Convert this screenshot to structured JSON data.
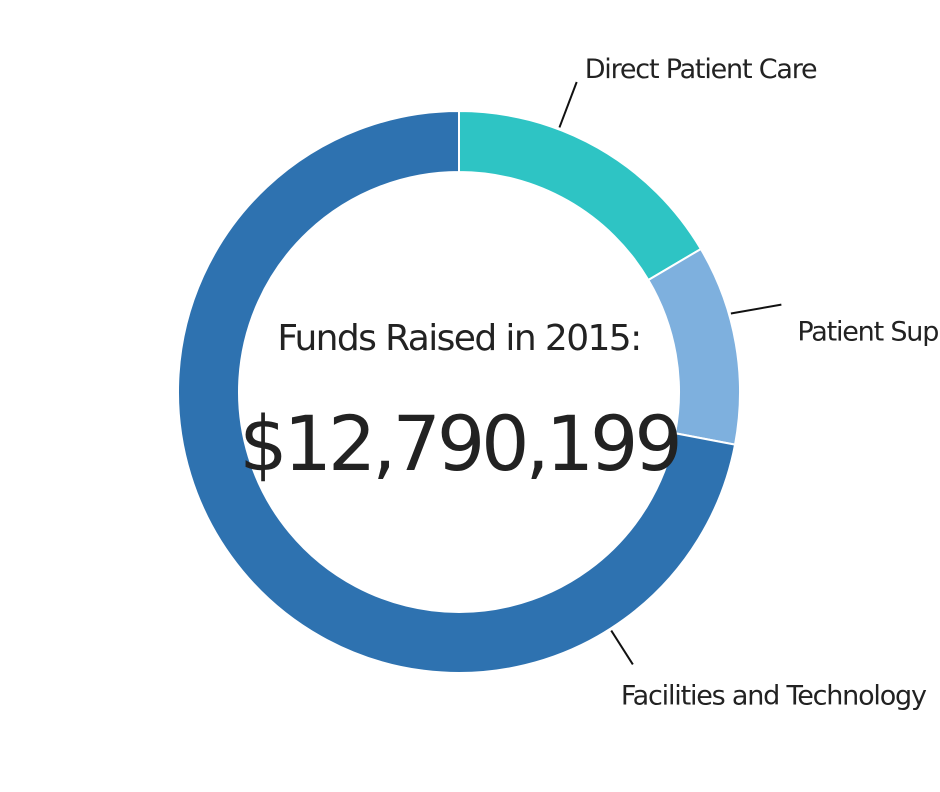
{
  "chart_data": {
    "type": "pie",
    "donut": true,
    "center_heading": "Funds Raised in 2015:",
    "center_total": "$12,790,199",
    "categories": [
      "Direct Patient Care",
      "Patient Support",
      "Facilities and Technology"
    ],
    "values": [
      16.5,
      11.5,
      72.0
    ],
    "value_unit": "percent (estimated from slice angles)",
    "colors": [
      "#2EC4C4",
      "#7EB0DE",
      "#2E72B0"
    ],
    "legend": "none (leader-line labels beside slices)",
    "start": "top, clockwise"
  }
}
